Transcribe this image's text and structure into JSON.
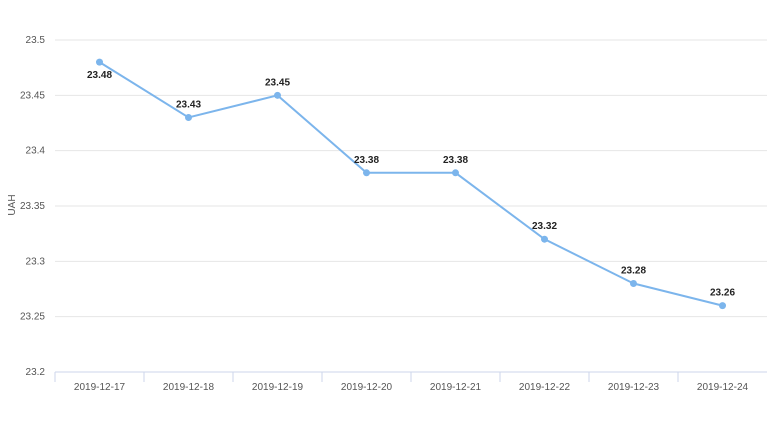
{
  "chart_data": {
    "type": "line",
    "title": "",
    "xlabel": "",
    "ylabel": "UAH",
    "categories": [
      "2019-12-17",
      "2019-12-18",
      "2019-12-19",
      "2019-12-20",
      "2019-12-21",
      "2019-12-22",
      "2019-12-23",
      "2019-12-24"
    ],
    "series": [
      {
        "values": [
          23.48,
          23.43,
          23.45,
          23.38,
          23.38,
          23.32,
          23.28,
          23.26
        ]
      }
    ],
    "data_labels": [
      "23.48",
      "23.43",
      "23.45",
      "23.38",
      "23.38",
      "23.32",
      "23.28",
      "23.26"
    ],
    "ylim": [
      23.2,
      23.5
    ],
    "yticks": [
      "23.2",
      "23.25",
      "23.3",
      "23.35",
      "23.4",
      "23.45",
      "23.5"
    ],
    "grid": true,
    "line_color": "#7cb5ec"
  }
}
